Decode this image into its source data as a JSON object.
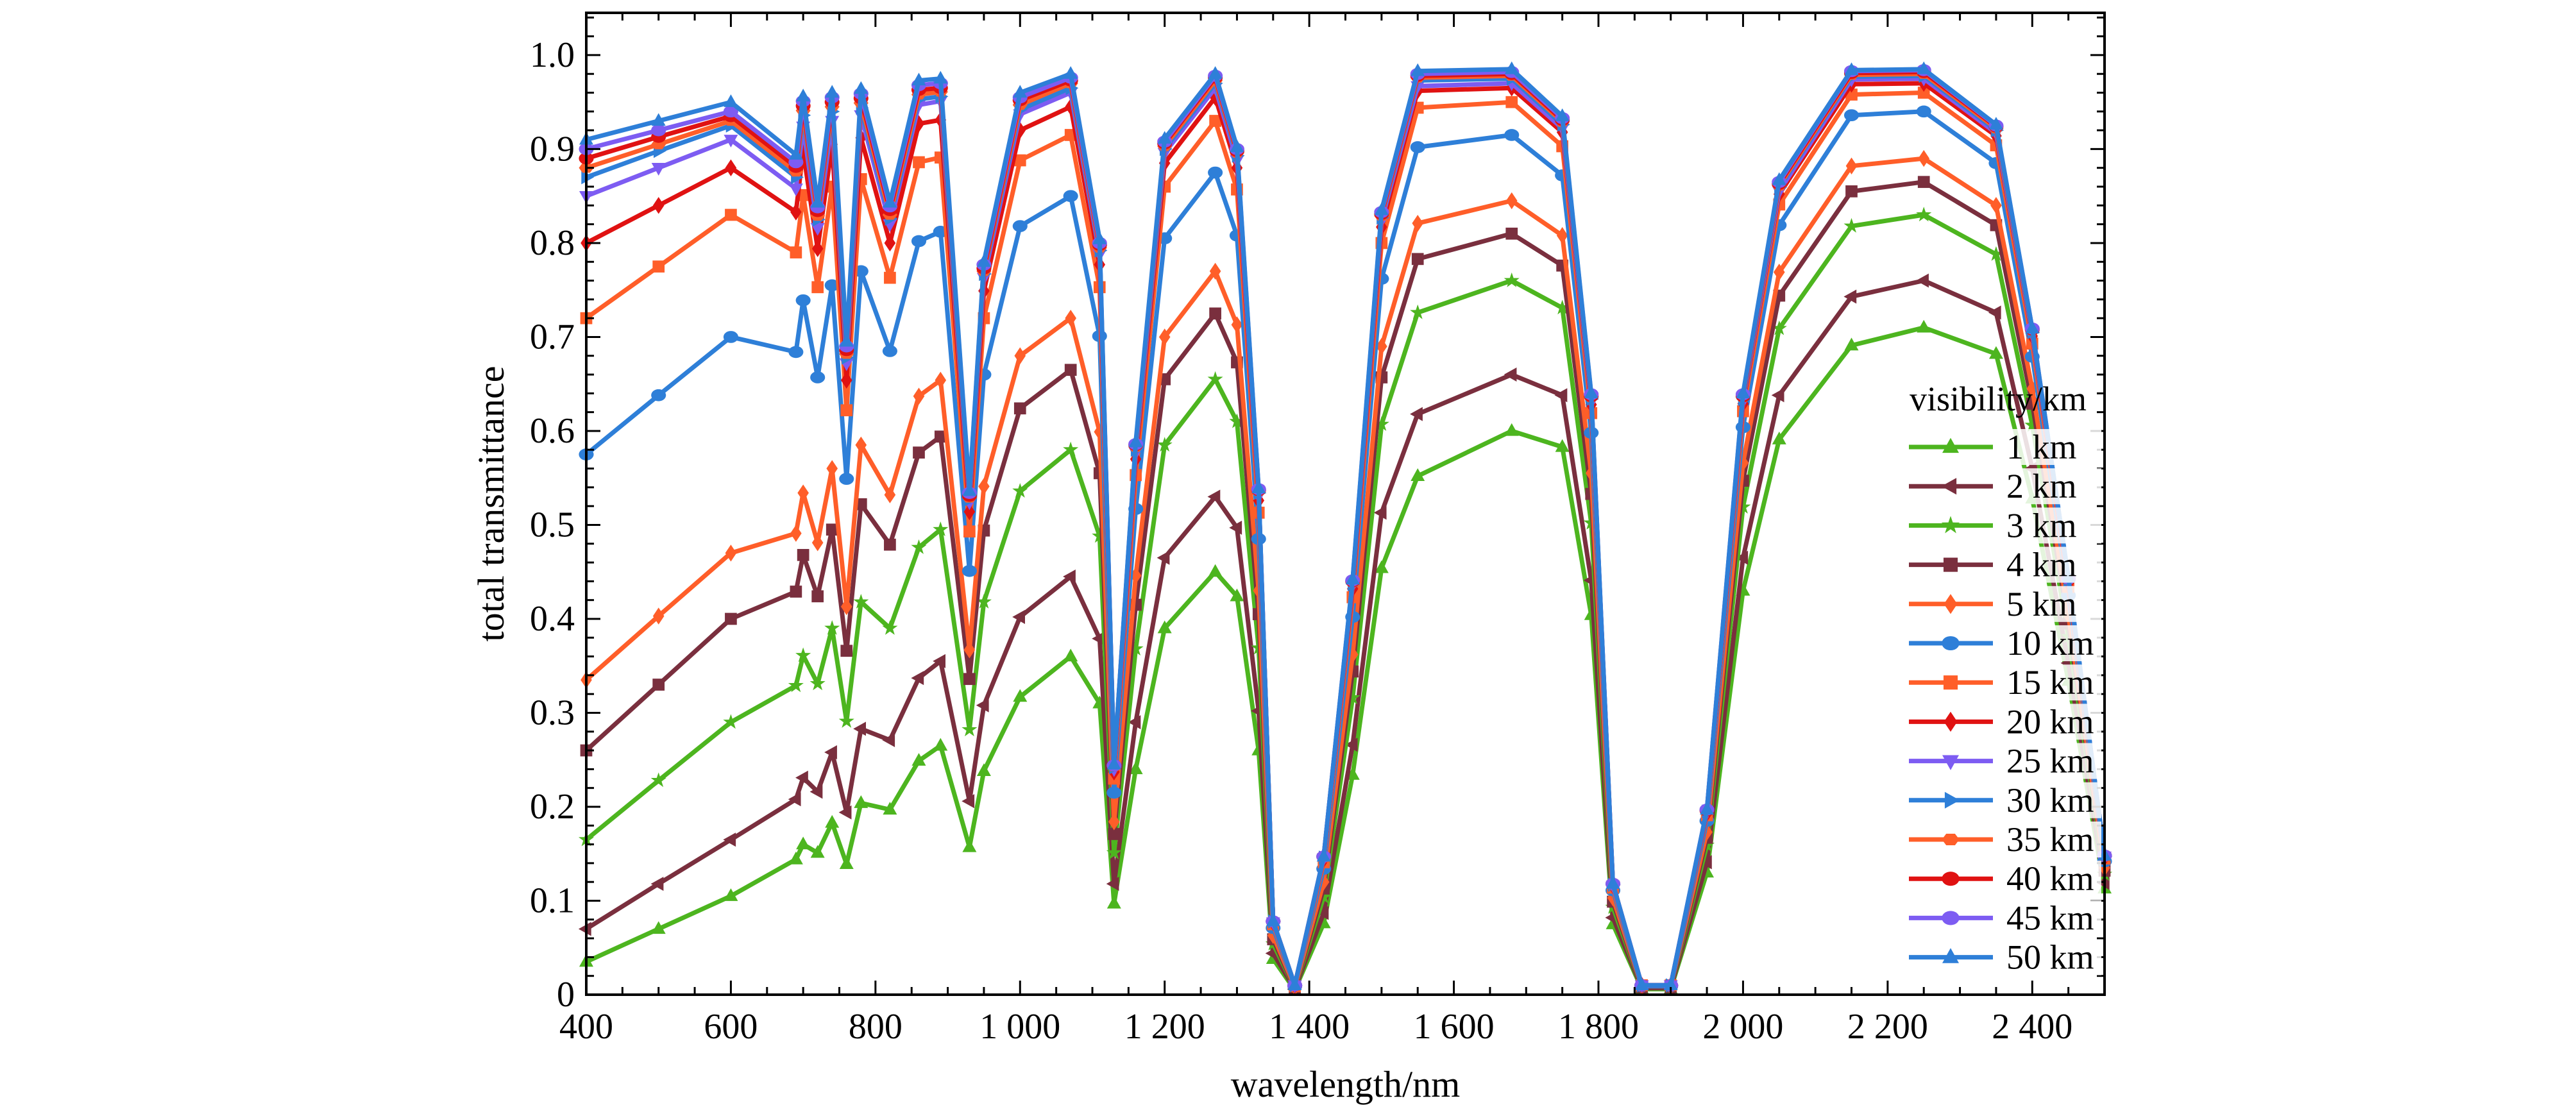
{
  "chart_data": {
    "type": "line",
    "title": "",
    "xlabel": "wavelength/nm",
    "ylabel": "total transmittance",
    "xlim": [
      400,
      2500
    ],
    "ylim": [
      0,
      1.045
    ],
    "grid": false,
    "legend_title": "visibility/km",
    "legend_placement": "right",
    "xticks": [
      {
        "value": 400,
        "label": "400"
      },
      {
        "value": 600,
        "label": "600"
      },
      {
        "value": 800,
        "label": "800"
      },
      {
        "value": 1000,
        "label": "1 000"
      },
      {
        "value": 1200,
        "label": "1 200"
      },
      {
        "value": 1400,
        "label": "1 400"
      },
      {
        "value": 1600,
        "label": "1 600"
      },
      {
        "value": 1800,
        "label": "1 800"
      },
      {
        "value": 2000,
        "label": "2 000"
      },
      {
        "value": 2200,
        "label": "2 200"
      },
      {
        "value": 2400,
        "label": "2 400"
      }
    ],
    "yticks": [
      {
        "value": 0,
        "label": "0"
      },
      {
        "value": 0.1,
        "label": "0.1"
      },
      {
        "value": 0.2,
        "label": "0.2"
      },
      {
        "value": 0.3,
        "label": "0.3"
      },
      {
        "value": 0.4,
        "label": "0.4"
      },
      {
        "value": 0.5,
        "label": "0.5"
      },
      {
        "value": 0.6,
        "label": "0.6"
      },
      {
        "value": 0.7,
        "label": "0.7"
      },
      {
        "value": 0.8,
        "label": "0.8"
      },
      {
        "value": 0.9,
        "label": "0.9"
      },
      {
        "value": 1.0,
        "label": "1.0"
      }
    ],
    "x": [
      400,
      500,
      600,
      690,
      700,
      720,
      740,
      760,
      780,
      820,
      860,
      890,
      930,
      950,
      1000,
      1070,
      1110,
      1130,
      1160,
      1200,
      1270,
      1300,
      1330,
      1350,
      1380,
      1420,
      1460,
      1500,
      1550,
      1680,
      1750,
      1790,
      1820,
      1860,
      1900,
      1950,
      2000,
      2050,
      2150,
      2250,
      2350,
      2400,
      2450,
      2500
    ],
    "series": [
      {
        "name": "1 km",
        "color": "#4db51f",
        "marker": "triangle-up",
        "values": [
          0.035,
          0.07,
          0.105,
          0.144,
          0.16,
          0.151,
          0.183,
          0.139,
          0.204,
          0.197,
          0.249,
          0.265,
          0.157,
          0.238,
          0.317,
          0.36,
          0.31,
          0.097,
          0.24,
          0.39,
          0.45,
          0.424,
          0.26,
          0.038,
          0.005,
          0.076,
          0.234,
          0.454,
          0.552,
          0.6,
          0.583,
          0.404,
          0.075,
          0.006,
          0.006,
          0.13,
          0.43,
          0.591,
          0.691,
          0.71,
          0.682,
          0.528,
          0.334,
          0.113
        ]
      },
      {
        "name": "2 km",
        "color": "#7a2f3e",
        "marker": "triangle-left",
        "values": [
          0.07,
          0.118,
          0.165,
          0.208,
          0.231,
          0.216,
          0.258,
          0.194,
          0.283,
          0.271,
          0.337,
          0.355,
          0.206,
          0.308,
          0.402,
          0.445,
          0.379,
          0.118,
          0.29,
          0.465,
          0.53,
          0.497,
          0.302,
          0.044,
          0.006,
          0.087,
          0.266,
          0.513,
          0.618,
          0.66,
          0.638,
          0.441,
          0.082,
          0.007,
          0.007,
          0.141,
          0.465,
          0.638,
          0.743,
          0.76,
          0.726,
          0.56,
          0.353,
          0.119
        ]
      },
      {
        "name": "3 km",
        "color": "#4db51f",
        "marker": "star",
        "values": [
          0.165,
          0.228,
          0.29,
          0.329,
          0.361,
          0.331,
          0.39,
          0.291,
          0.418,
          0.39,
          0.476,
          0.495,
          0.282,
          0.418,
          0.536,
          0.58,
          0.488,
          0.151,
          0.368,
          0.585,
          0.655,
          0.61,
          0.369,
          0.054,
          0.007,
          0.104,
          0.316,
          0.607,
          0.726,
          0.76,
          0.731,
          0.502,
          0.093,
          0.008,
          0.008,
          0.159,
          0.519,
          0.709,
          0.818,
          0.83,
          0.788,
          0.606,
          0.381,
          0.128
        ]
      },
      {
        "name": "4 km",
        "color": "#7a2f3e",
        "marker": "square",
        "values": [
          0.26,
          0.33,
          0.4,
          0.429,
          0.468,
          0.424,
          0.495,
          0.366,
          0.522,
          0.479,
          0.577,
          0.594,
          0.336,
          0.494,
          0.624,
          0.665,
          0.555,
          0.171,
          0.415,
          0.655,
          0.725,
          0.673,
          0.405,
          0.059,
          0.007,
          0.113,
          0.344,
          0.657,
          0.783,
          0.81,
          0.776,
          0.533,
          0.099,
          0.008,
          0.008,
          0.167,
          0.547,
          0.744,
          0.855,
          0.865,
          0.819,
          0.629,
          0.395,
          0.132
        ]
      },
      {
        "name": "5 km",
        "color": "#ff5e29",
        "marker": "diamond",
        "values": [
          0.335,
          0.403,
          0.47,
          0.491,
          0.534,
          0.481,
          0.56,
          0.413,
          0.585,
          0.532,
          0.637,
          0.654,
          0.367,
          0.541,
          0.68,
          0.72,
          0.599,
          0.184,
          0.446,
          0.7,
          0.77,
          0.713,
          0.43,
          0.063,
          0.008,
          0.12,
          0.362,
          0.69,
          0.821,
          0.845,
          0.808,
          0.555,
          0.103,
          0.009,
          0.009,
          0.173,
          0.566,
          0.769,
          0.882,
          0.89,
          0.84,
          0.645,
          0.404,
          0.135
        ]
      },
      {
        "name": "10 km",
        "color": "#2e7fd8",
        "marker": "circle",
        "values": [
          0.575,
          0.638,
          0.7,
          0.684,
          0.739,
          0.657,
          0.755,
          0.549,
          0.77,
          0.685,
          0.802,
          0.812,
          0.451,
          0.66,
          0.818,
          0.85,
          0.701,
          0.215,
          0.517,
          0.805,
          0.875,
          0.808,
          0.485,
          0.071,
          0.009,
          0.134,
          0.402,
          0.762,
          0.902,
          0.915,
          0.872,
          0.598,
          0.111,
          0.009,
          0.009,
          0.185,
          0.604,
          0.819,
          0.936,
          0.94,
          0.885,
          0.679,
          0.425,
          0.142
        ]
      },
      {
        "name": "15 km",
        "color": "#ff5e29",
        "marker": "square",
        "values": [
          0.72,
          0.775,
          0.83,
          0.79,
          0.851,
          0.753,
          0.86,
          0.622,
          0.868,
          0.763,
          0.886,
          0.891,
          0.493,
          0.72,
          0.888,
          0.915,
          0.753,
          0.23,
          0.553,
          0.86,
          0.93,
          0.857,
          0.513,
          0.075,
          0.009,
          0.141,
          0.423,
          0.8,
          0.944,
          0.95,
          0.903,
          0.619,
          0.114,
          0.01,
          0.01,
          0.191,
          0.621,
          0.841,
          0.958,
          0.96,
          0.904,
          0.693,
          0.434,
          0.145
        ]
      },
      {
        "name": "20 km",
        "color": "#e01212",
        "marker": "diamond",
        "values": [
          0.8,
          0.84,
          0.88,
          0.833,
          0.898,
          0.794,
          0.905,
          0.654,
          0.912,
          0.8,
          0.927,
          0.931,
          0.514,
          0.749,
          0.92,
          0.945,
          0.777,
          0.237,
          0.57,
          0.885,
          0.955,
          0.88,
          0.526,
          0.077,
          0.01,
          0.144,
          0.432,
          0.817,
          0.962,
          0.965,
          0.918,
          0.628,
          0.116,
          0.01,
          0.01,
          0.193,
          0.629,
          0.852,
          0.969,
          0.97,
          0.914,
          0.701,
          0.438,
          0.146
        ]
      },
      {
        "name": "25 km",
        "color": "#7d5cf2",
        "marker": "triangle-down",
        "values": [
          0.85,
          0.88,
          0.91,
          0.858,
          0.924,
          0.816,
          0.93,
          0.672,
          0.936,
          0.82,
          0.947,
          0.951,
          0.524,
          0.763,
          0.937,
          0.96,
          0.788,
          0.24,
          0.577,
          0.896,
          0.965,
          0.888,
          0.531,
          0.077,
          0.01,
          0.145,
          0.436,
          0.824,
          0.967,
          0.97,
          0.922,
          0.631,
          0.116,
          0.01,
          0.01,
          0.194,
          0.632,
          0.855,
          0.974,
          0.975,
          0.917,
          0.703,
          0.44,
          0.147
        ]
      },
      {
        "name": "30 km",
        "color": "#2e7fd8",
        "marker": "triangle-right",
        "values": [
          0.87,
          0.898,
          0.925,
          0.87,
          0.936,
          0.825,
          0.94,
          0.678,
          0.944,
          0.826,
          0.953,
          0.956,
          0.527,
          0.767,
          0.942,
          0.965,
          0.792,
          0.242,
          0.58,
          0.9,
          0.97,
          0.893,
          0.534,
          0.078,
          0.01,
          0.146,
          0.437,
          0.827,
          0.973,
          0.975,
          0.926,
          0.634,
          0.117,
          0.01,
          0.01,
          0.195,
          0.634,
          0.859,
          0.977,
          0.978,
          0.92,
          0.705,
          0.441,
          0.147
        ]
      },
      {
        "name": "35 km",
        "color": "#ff5e29",
        "marker": "hexagon",
        "values": [
          0.88,
          0.905,
          0.93,
          0.876,
          0.941,
          0.829,
          0.945,
          0.682,
          0.949,
          0.83,
          0.958,
          0.961,
          0.529,
          0.77,
          0.947,
          0.97,
          0.795,
          0.243,
          0.583,
          0.903,
          0.973,
          0.896,
          0.536,
          0.078,
          0.01,
          0.146,
          0.439,
          0.829,
          0.976,
          0.978,
          0.929,
          0.636,
          0.117,
          0.01,
          0.01,
          0.196,
          0.636,
          0.861,
          0.979,
          0.98,
          0.922,
          0.707,
          0.442,
          0.147
        ]
      },
      {
        "name": "40 km",
        "color": "#e01212",
        "marker": "circle",
        "values": [
          0.89,
          0.913,
          0.935,
          0.881,
          0.946,
          0.834,
          0.95,
          0.686,
          0.954,
          0.835,
          0.963,
          0.965,
          0.531,
          0.773,
          0.952,
          0.973,
          0.798,
          0.244,
          0.585,
          0.906,
          0.976,
          0.898,
          0.537,
          0.078,
          0.01,
          0.147,
          0.44,
          0.831,
          0.978,
          0.98,
          0.931,
          0.637,
          0.118,
          0.01,
          0.01,
          0.196,
          0.637,
          0.863,
          0.981,
          0.982,
          0.924,
          0.708,
          0.443,
          0.148
        ]
      },
      {
        "name": "45 km",
        "color": "#7d5cf2",
        "marker": "circle",
        "values": [
          0.9,
          0.92,
          0.94,
          0.886,
          0.951,
          0.838,
          0.955,
          0.69,
          0.959,
          0.839,
          0.968,
          0.97,
          0.534,
          0.777,
          0.955,
          0.976,
          0.8,
          0.244,
          0.586,
          0.908,
          0.978,
          0.9,
          0.538,
          0.078,
          0.01,
          0.147,
          0.441,
          0.833,
          0.98,
          0.982,
          0.933,
          0.639,
          0.118,
          0.01,
          0.01,
          0.197,
          0.639,
          0.865,
          0.983,
          0.984,
          0.925,
          0.709,
          0.443,
          0.148
        ]
      },
      {
        "name": "50 km",
        "color": "#2e7fd8",
        "marker": "triangle-up",
        "values": [
          0.91,
          0.93,
          0.95,
          0.894,
          0.956,
          0.843,
          0.96,
          0.695,
          0.964,
          0.843,
          0.973,
          0.975,
          0.536,
          0.78,
          0.96,
          0.98,
          0.804,
          0.245,
          0.588,
          0.911,
          0.98,
          0.902,
          0.539,
          0.078,
          0.01,
          0.147,
          0.442,
          0.835,
          0.983,
          0.985,
          0.935,
          0.64,
          0.118,
          0.01,
          0.01,
          0.197,
          0.64,
          0.867,
          0.984,
          0.985,
          0.926,
          0.709,
          0.444,
          0.148
        ]
      }
    ]
  }
}
